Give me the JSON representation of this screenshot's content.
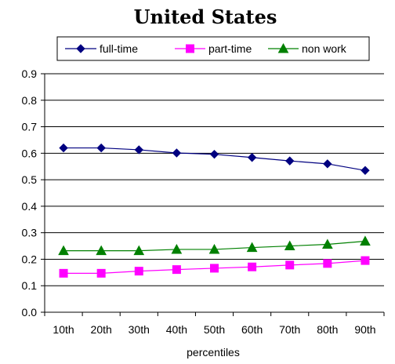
{
  "chart_data": {
    "type": "line",
    "title": "United States",
    "xlabel": "percentiles",
    "ylabel": "",
    "categories": [
      "10th",
      "20th",
      "30th",
      "40th",
      "50th",
      "60th",
      "70th",
      "80th",
      "90th"
    ],
    "ylim": [
      0,
      0.9
    ],
    "yticks": [
      "0.0",
      "0.1",
      "0.2",
      "0.3",
      "0.4",
      "0.5",
      "0.6",
      "0.7",
      "0.8",
      "0.9"
    ],
    "grid": "horizontal-lines",
    "legend": "top",
    "series": [
      {
        "name": "full-time",
        "color": "#000080",
        "marker": "diamond",
        "values": [
          0.62,
          0.62,
          0.613,
          0.601,
          0.596,
          0.584,
          0.571,
          0.56,
          0.535
        ]
      },
      {
        "name": "part-time",
        "color": "#ff00ff",
        "marker": "square",
        "values": [
          0.147,
          0.147,
          0.155,
          0.161,
          0.166,
          0.171,
          0.178,
          0.184,
          0.195
        ]
      },
      {
        "name": "non work",
        "color": "#008000",
        "marker": "triangle",
        "values": [
          0.232,
          0.232,
          0.232,
          0.237,
          0.237,
          0.244,
          0.25,
          0.256,
          0.268
        ]
      }
    ]
  }
}
